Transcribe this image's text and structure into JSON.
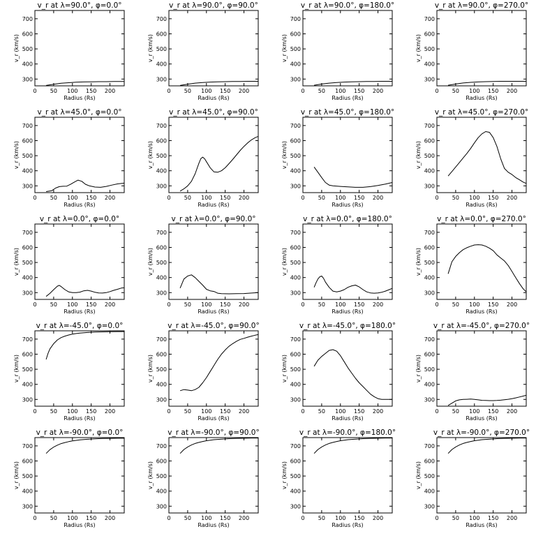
{
  "figure": {
    "colors": {
      "background": "#ffffff",
      "line": "#000000"
    },
    "ylabel": "v_r (km/s)",
    "xlabel": "Radius (Rs)",
    "xticks": [
      0,
      50,
      100,
      150,
      200
    ],
    "yticks": [
      300,
      400,
      500,
      600,
      700
    ],
    "xlim": [
      0,
      238
    ],
    "ylim": [
      255,
      755
    ]
  },
  "chart_data": [
    {
      "type": "line",
      "title": "v_r at λ=90.0°, φ=0.0°",
      "xlabel": "Radius (Rs)",
      "ylabel": "v_r (km/s)",
      "xlim": [
        0,
        238
      ],
      "ylim": [
        255,
        755
      ],
      "x": [
        30,
        50,
        70,
        90,
        110,
        130,
        150,
        170,
        190,
        210,
        230,
        238
      ],
      "y": [
        258,
        265,
        272,
        276,
        279,
        281,
        282,
        283,
        283,
        284,
        284,
        284
      ]
    },
    {
      "type": "line",
      "title": "v_r at λ=90.0°, φ=90.0°",
      "xlabel": "Radius (Rs)",
      "ylabel": "v_r (km/s)",
      "xlim": [
        0,
        238
      ],
      "ylim": [
        255,
        755
      ],
      "x": [
        30,
        50,
        70,
        90,
        110,
        130,
        150,
        170,
        190,
        210,
        230,
        238
      ],
      "y": [
        258,
        266,
        273,
        277,
        280,
        282,
        283,
        284,
        284,
        285,
        285,
        285
      ]
    },
    {
      "type": "line",
      "title": "v_r at λ=90.0°, φ=180.0°",
      "xlabel": "Radius (Rs)",
      "ylabel": "v_r (km/s)",
      "xlim": [
        0,
        238
      ],
      "ylim": [
        255,
        755
      ],
      "x": [
        30,
        50,
        70,
        90,
        110,
        130,
        150,
        170,
        190,
        210,
        230,
        238
      ],
      "y": [
        259,
        267,
        273,
        277,
        280,
        282,
        283,
        284,
        284,
        285,
        285,
        285
      ]
    },
    {
      "type": "line",
      "title": "v_r at λ=90.0°, φ=270.0°",
      "xlabel": "Radius (Rs)",
      "ylabel": "v_r (km/s)",
      "xlim": [
        0,
        238
      ],
      "ylim": [
        255,
        755
      ],
      "x": [
        30,
        50,
        70,
        90,
        110,
        130,
        150,
        170,
        190,
        210,
        230,
        238
      ],
      "y": [
        259,
        267,
        274,
        278,
        281,
        283,
        284,
        285,
        285,
        285,
        285,
        285
      ]
    },
    {
      "type": "line",
      "title": "v_r at λ=45.0°, φ=0.0°",
      "xlabel": "Radius (Rs)",
      "ylabel": "v_r (km/s)",
      "xlim": [
        0,
        238
      ],
      "ylim": [
        255,
        755
      ],
      "x": [
        30,
        45,
        55,
        65,
        75,
        85,
        95,
        105,
        115,
        125,
        135,
        145,
        160,
        175,
        190,
        205,
        220,
        238
      ],
      "y": [
        262,
        268,
        285,
        295,
        297,
        298,
        310,
        325,
        338,
        330,
        310,
        300,
        292,
        290,
        296,
        305,
        313,
        318
      ]
    },
    {
      "type": "line",
      "title": "v_r at λ=45.0°, φ=90.0°",
      "xlabel": "Radius (Rs)",
      "ylabel": "v_r (km/s)",
      "xlim": [
        0,
        238
      ],
      "ylim": [
        255,
        755
      ],
      "x": [
        30,
        40,
        50,
        60,
        70,
        80,
        85,
        90,
        95,
        100,
        110,
        120,
        130,
        140,
        150,
        160,
        170,
        180,
        190,
        200,
        210,
        220,
        230,
        238
      ],
      "y": [
        265,
        280,
        300,
        330,
        380,
        450,
        480,
        490,
        480,
        460,
        420,
        393,
        390,
        400,
        420,
        447,
        475,
        505,
        535,
        562,
        585,
        605,
        620,
        628
      ]
    },
    {
      "type": "line",
      "title": "v_r at λ=45.0°, φ=180.0°",
      "xlabel": "Radius (Rs)",
      "ylabel": "v_r (km/s)",
      "xlim": [
        0,
        238
      ],
      "ylim": [
        255,
        755
      ],
      "x": [
        30,
        40,
        50,
        60,
        70,
        80,
        100,
        120,
        140,
        160,
        180,
        200,
        220,
        238
      ],
      "y": [
        425,
        390,
        355,
        322,
        305,
        300,
        296,
        293,
        290,
        290,
        295,
        302,
        312,
        322
      ]
    },
    {
      "type": "line",
      "title": "v_r at λ=45.0°, φ=270.0°",
      "xlabel": "Radius (Rs)",
      "ylabel": "v_r (km/s)",
      "xlim": [
        0,
        238
      ],
      "ylim": [
        255,
        755
      ],
      "x": [
        30,
        40,
        50,
        60,
        70,
        80,
        90,
        100,
        110,
        120,
        130,
        140,
        150,
        160,
        170,
        180,
        190,
        200,
        210,
        220,
        230,
        238
      ],
      "y": [
        365,
        395,
        425,
        455,
        485,
        515,
        548,
        585,
        620,
        645,
        660,
        655,
        620,
        560,
        480,
        415,
        390,
        375,
        355,
        340,
        325,
        316
      ]
    },
    {
      "type": "line",
      "title": "v_r at λ=0.0°, φ=0.0°",
      "xlabel": "Radius (Rs)",
      "ylabel": "v_r (km/s)",
      "xlim": [
        0,
        238
      ],
      "ylim": [
        255,
        755
      ],
      "x": [
        30,
        40,
        50,
        60,
        65,
        70,
        80,
        90,
        100,
        110,
        120,
        130,
        140,
        150,
        160,
        170,
        180,
        190,
        200,
        210,
        220,
        230,
        238
      ],
      "y": [
        275,
        295,
        320,
        343,
        348,
        340,
        320,
        305,
        300,
        300,
        303,
        312,
        315,
        310,
        302,
        298,
        297,
        300,
        307,
        315,
        322,
        330,
        333
      ]
    },
    {
      "type": "line",
      "title": "v_r at λ=0.0°, φ=90.0°",
      "xlabel": "Radius (Rs)",
      "ylabel": "v_r (km/s)",
      "xlim": [
        0,
        238
      ],
      "ylim": [
        255,
        755
      ],
      "x": [
        30,
        35,
        40,
        50,
        60,
        70,
        80,
        90,
        100,
        110,
        120,
        130,
        140,
        160,
        180,
        200,
        220,
        238
      ],
      "y": [
        330,
        360,
        390,
        410,
        418,
        400,
        375,
        350,
        322,
        312,
        308,
        296,
        293,
        292,
        293,
        294,
        297,
        300
      ]
    },
    {
      "type": "line",
      "title": "v_r at λ=0.0°, φ=180.0°",
      "xlabel": "Radius (Rs)",
      "ylabel": "v_r (km/s)",
      "xlim": [
        0,
        238
      ],
      "ylim": [
        255,
        755
      ],
      "x": [
        30,
        35,
        40,
        45,
        50,
        55,
        60,
        70,
        80,
        90,
        100,
        110,
        120,
        130,
        140,
        150,
        160,
        170,
        180,
        190,
        200,
        210,
        220,
        230,
        238
      ],
      "y": [
        335,
        365,
        390,
        405,
        410,
        395,
        370,
        335,
        310,
        305,
        310,
        320,
        335,
        345,
        350,
        338,
        320,
        305,
        298,
        296,
        298,
        302,
        310,
        320,
        328
      ]
    },
    {
      "type": "line",
      "title": "v_r at λ=0.0°, φ=270.0°",
      "xlabel": "Radius (Rs)",
      "ylabel": "v_r (km/s)",
      "xlim": [
        0,
        238
      ],
      "ylim": [
        255,
        755
      ],
      "x": [
        30,
        40,
        50,
        60,
        70,
        80,
        90,
        100,
        110,
        120,
        130,
        140,
        150,
        160,
        170,
        180,
        190,
        200,
        210,
        220,
        230,
        238
      ],
      "y": [
        425,
        505,
        540,
        565,
        585,
        598,
        608,
        616,
        618,
        616,
        608,
        595,
        578,
        550,
        530,
        510,
        480,
        440,
        400,
        360,
        325,
        305
      ]
    },
    {
      "type": "line",
      "title": "v_r at λ=-45.0°, φ=0.0°",
      "xlabel": "Radius (Rs)",
      "ylabel": "v_r (km/s)",
      "xlim": [
        0,
        238
      ],
      "ylim": [
        255,
        755
      ],
      "x": [
        30,
        35,
        40,
        50,
        60,
        70,
        80,
        90,
        100,
        110,
        120,
        140,
        160,
        180,
        200,
        220,
        238
      ],
      "y": [
        565,
        605,
        635,
        670,
        695,
        710,
        720,
        727,
        733,
        737,
        740,
        744,
        747,
        748,
        749,
        750,
        750
      ]
    },
    {
      "type": "line",
      "title": "v_r at λ=-45.0°, φ=90.0°",
      "xlabel": "Radius (Rs)",
      "ylabel": "v_r (km/s)",
      "xlim": [
        0,
        238
      ],
      "ylim": [
        255,
        755
      ],
      "x": [
        30,
        40,
        50,
        60,
        70,
        80,
        90,
        100,
        110,
        120,
        130,
        140,
        150,
        160,
        170,
        180,
        190,
        200,
        210,
        220,
        230,
        238
      ],
      "y": [
        358,
        365,
        362,
        358,
        365,
        380,
        410,
        445,
        485,
        525,
        565,
        600,
        628,
        652,
        670,
        685,
        698,
        705,
        713,
        720,
        726,
        730
      ]
    },
    {
      "type": "line",
      "title": "v_r at λ=-45.0°, φ=180.0°",
      "xlabel": "Radius (Rs)",
      "ylabel": "v_r (km/s)",
      "xlim": [
        0,
        238
      ],
      "ylim": [
        255,
        755
      ],
      "x": [
        30,
        40,
        50,
        60,
        70,
        80,
        90,
        100,
        110,
        120,
        130,
        140,
        150,
        160,
        170,
        180,
        190,
        200,
        210,
        220,
        230,
        238
      ],
      "y": [
        520,
        560,
        585,
        605,
        625,
        630,
        620,
        590,
        550,
        510,
        475,
        440,
        410,
        385,
        360,
        335,
        318,
        305,
        300,
        300,
        300,
        300
      ]
    },
    {
      "type": "line",
      "title": "v_r at λ=-45.0°, φ=270.0°",
      "xlabel": "Radius (Rs)",
      "ylabel": "v_r (km/s)",
      "xlim": [
        0,
        238
      ],
      "ylim": [
        255,
        755
      ],
      "x": [
        30,
        40,
        50,
        60,
        70,
        80,
        90,
        100,
        110,
        120,
        130,
        140,
        150,
        160,
        170,
        180,
        190,
        200,
        210,
        220,
        230,
        238
      ],
      "y": [
        260,
        275,
        290,
        297,
        300,
        301,
        302,
        300,
        297,
        294,
        293,
        292,
        292,
        293,
        295,
        298,
        301,
        305,
        310,
        316,
        322,
        327
      ]
    },
    {
      "type": "line",
      "title": "v_r at λ=-90.0°, φ=0.0°",
      "xlabel": "Radius (Rs)",
      "ylabel": "v_r (km/s)",
      "xlim": [
        0,
        238
      ],
      "ylim": [
        255,
        755
      ],
      "x": [
        30,
        40,
        50,
        60,
        70,
        80,
        90,
        100,
        120,
        140,
        160,
        180,
        200,
        220,
        238
      ],
      "y": [
        650,
        675,
        692,
        705,
        715,
        722,
        728,
        733,
        740,
        744,
        747,
        749,
        750,
        751,
        751
      ]
    },
    {
      "type": "line",
      "title": "v_r at λ=-90.0°, φ=90.0°",
      "xlabel": "Radius (Rs)",
      "ylabel": "v_r (km/s)",
      "xlim": [
        0,
        238
      ],
      "ylim": [
        255,
        755
      ],
      "x": [
        30,
        40,
        50,
        60,
        70,
        80,
        90,
        100,
        120,
        140,
        160,
        180,
        200,
        220,
        238
      ],
      "y": [
        650,
        676,
        693,
        706,
        716,
        723,
        729,
        734,
        741,
        745,
        748,
        750,
        751,
        752,
        752
      ]
    },
    {
      "type": "line",
      "title": "v_r at λ=-90.0°, φ=180.0°",
      "xlabel": "Radius (Rs)",
      "ylabel": "v_r (km/s)",
      "xlim": [
        0,
        238
      ],
      "ylim": [
        255,
        755
      ],
      "x": [
        30,
        40,
        50,
        60,
        70,
        80,
        90,
        100,
        120,
        140,
        160,
        180,
        200,
        220,
        238
      ],
      "y": [
        650,
        676,
        693,
        706,
        716,
        723,
        729,
        734,
        741,
        745,
        748,
        750,
        751,
        752,
        752
      ]
    },
    {
      "type": "line",
      "title": "v_r at λ=-90.0°, φ=270.0°",
      "xlabel": "Radius (Rs)",
      "ylabel": "v_r (km/s)",
      "xlim": [
        0,
        238
      ],
      "ylim": [
        255,
        755
      ],
      "x": [
        30,
        40,
        50,
        60,
        70,
        80,
        90,
        100,
        120,
        140,
        160,
        180,
        200,
        220,
        238
      ],
      "y": [
        650,
        676,
        693,
        706,
        716,
        723,
        729,
        734,
        741,
        745,
        748,
        750,
        751,
        752,
        752
      ]
    }
  ]
}
